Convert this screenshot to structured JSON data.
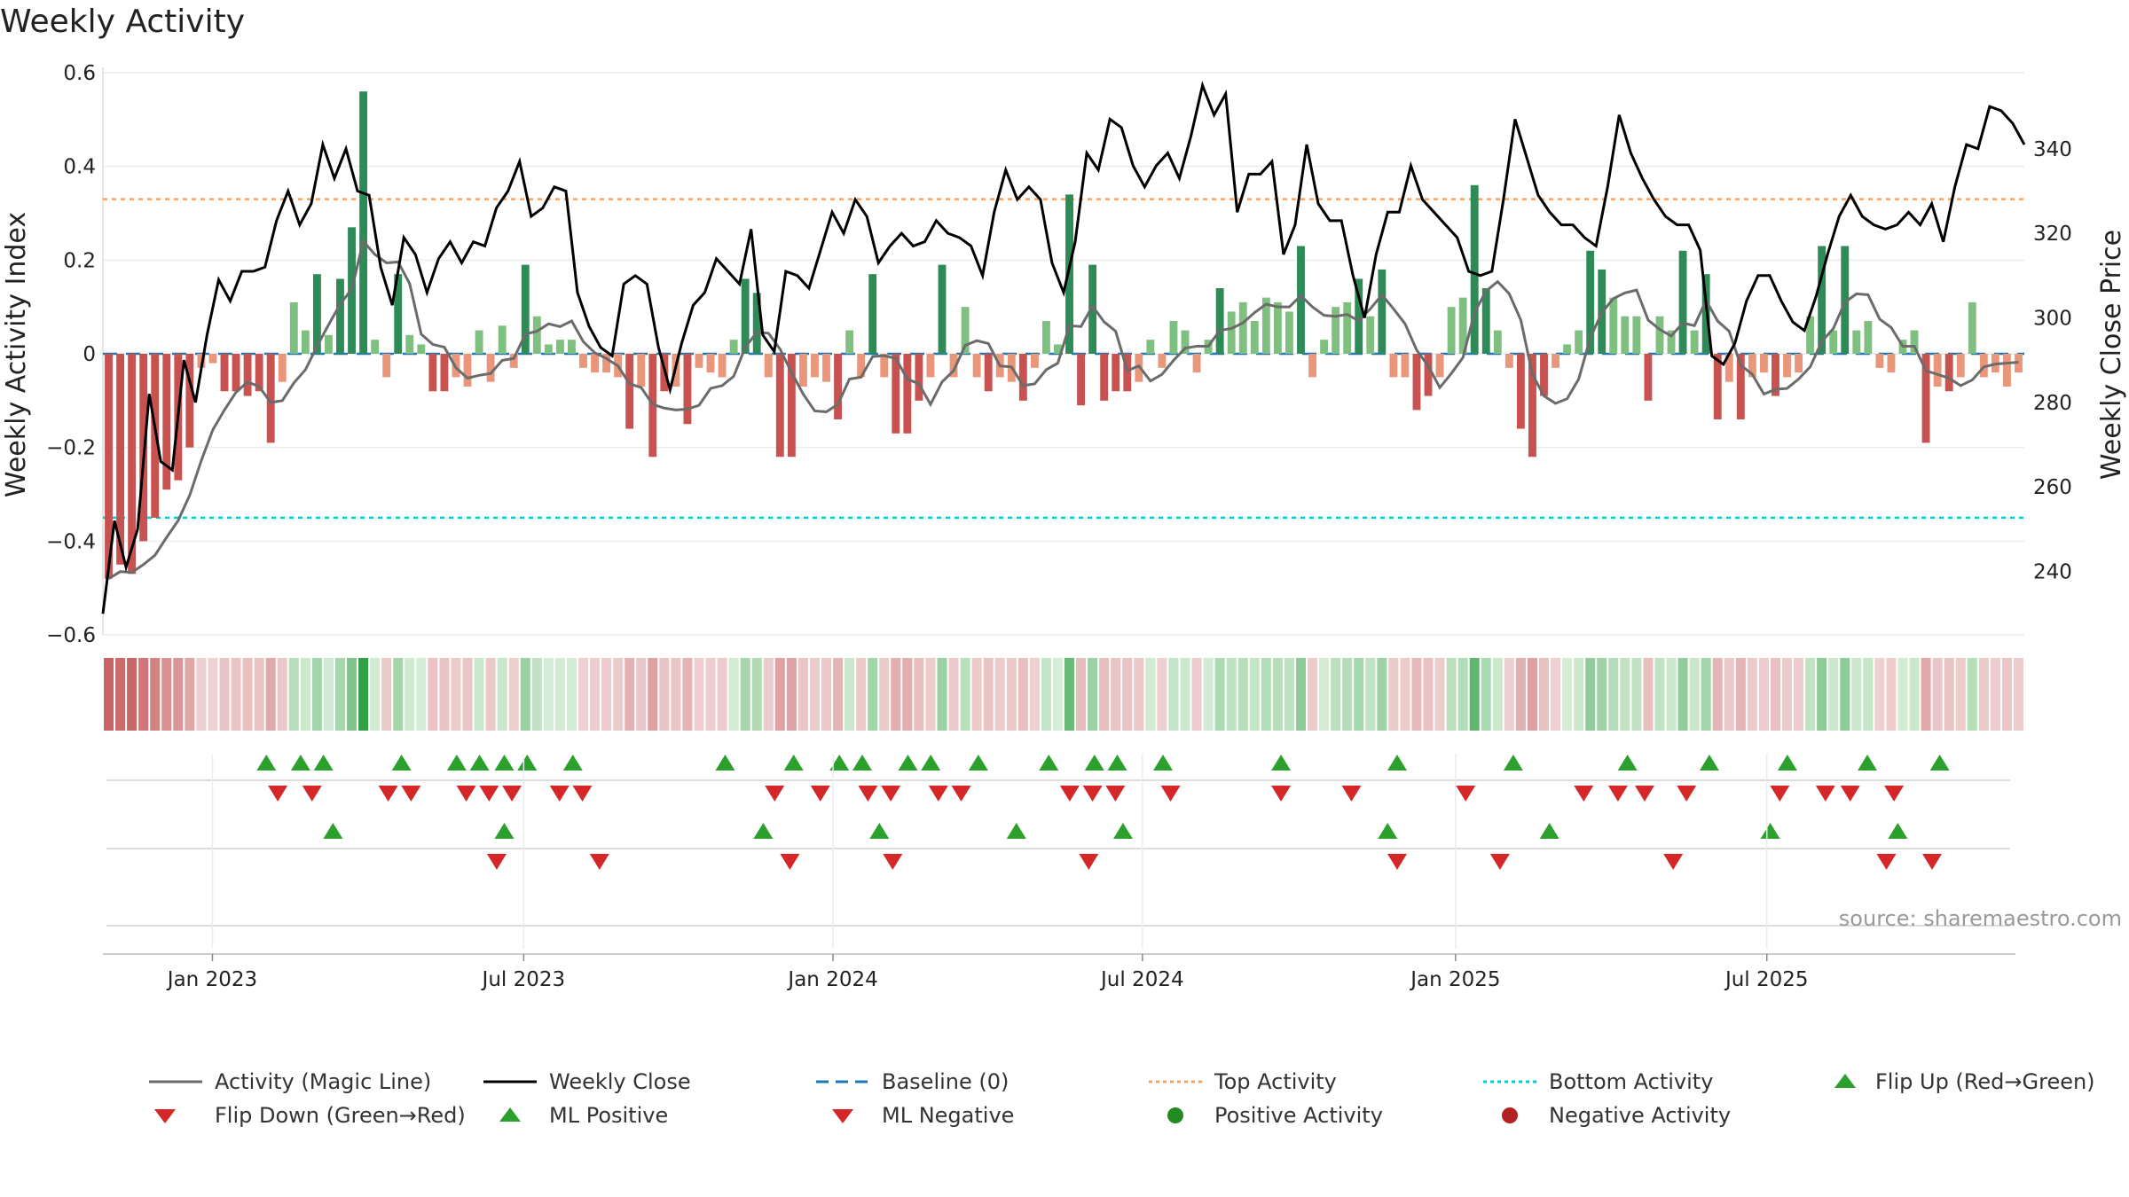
{
  "title": "Weekly Activity",
  "source": "source: sharemaestro.com",
  "colors": {
    "green_strong": "#2e8b57",
    "green_light": "#7fbf7f",
    "red_strong": "#c85250",
    "red_light": "#e9967a",
    "magic_line": "#6b6b6b",
    "close": "#000000",
    "baseline": "#1f77b4",
    "top": "#f4a460",
    "bottom": "#00ced1",
    "marker_up": "#2ca02c",
    "marker_down": "#d62728"
  },
  "chart_data": {
    "type": "bar",
    "title": "Weekly Activity",
    "ylabel": "Weekly Activity Index",
    "y2label": "Weekly Close Price",
    "ylim": [
      -0.6,
      0.6
    ],
    "y2lim": [
      225,
      358
    ],
    "yticks": [
      "0.6",
      "0.4",
      "0.2",
      "0",
      "−0.2",
      "−0.4",
      "−0.6"
    ],
    "y2ticks": [
      "340",
      "320",
      "300",
      "280",
      "260",
      "240"
    ],
    "xtick_labels": [
      "Jan 2023",
      "Jul 2023",
      "Jan 2024",
      "Jul 2024",
      "Jan 2025",
      "Jul 2025"
    ],
    "top_activity": 0.33,
    "bottom_activity": -0.35,
    "baseline": 0,
    "activity": [
      -0.48,
      -0.45,
      -0.47,
      -0.4,
      -0.35,
      -0.29,
      -0.27,
      -0.2,
      -0.03,
      -0.02,
      -0.08,
      -0.08,
      -0.09,
      -0.08,
      -0.19,
      -0.06,
      0.11,
      0.05,
      0.17,
      0.04,
      0.16,
      0.27,
      0.56,
      0.03,
      -0.05,
      0.17,
      0.04,
      0.02,
      -0.08,
      -0.08,
      -0.05,
      -0.07,
      0.05,
      -0.06,
      0.06,
      -0.03,
      0.19,
      0.08,
      0.02,
      0.03,
      0.03,
      -0.03,
      -0.04,
      -0.04,
      -0.05,
      -0.16,
      -0.07,
      -0.22,
      -0.08,
      -0.07,
      -0.15,
      -0.03,
      -0.04,
      -0.05,
      0.03,
      0.16,
      0.13,
      -0.05,
      -0.22,
      -0.22,
      -0.07,
      -0.05,
      -0.06,
      -0.14,
      0.05,
      -0.05,
      0.17,
      -0.05,
      -0.17,
      -0.17,
      -0.1,
      -0.05,
      0.19,
      -0.05,
      0.1,
      -0.05,
      -0.08,
      -0.05,
      -0.06,
      -0.1,
      -0.03,
      0.07,
      0.02,
      0.34,
      -0.11,
      0.19,
      -0.1,
      -0.08,
      -0.08,
      -0.06,
      0.03,
      -0.03,
      0.07,
      0.05,
      -0.04,
      0.03,
      0.14,
      0.09,
      0.11,
      0.07,
      0.12,
      0.11,
      0.09,
      0.23,
      -0.05,
      0.03,
      0.1,
      0.11,
      0.16,
      0.08,
      0.18,
      -0.05,
      -0.05,
      -0.12,
      -0.09,
      -0.05,
      0.1,
      0.12,
      0.36,
      0.14,
      0.05,
      -0.03,
      -0.16,
      -0.22,
      -0.09,
      -0.03,
      0.02,
      0.05,
      0.22,
      0.18,
      0.12,
      0.08,
      0.08,
      -0.1,
      0.08,
      0.05,
      0.22,
      0.05,
      0.17,
      -0.14,
      -0.06,
      -0.14,
      -0.05,
      -0.04,
      -0.09,
      -0.05,
      -0.04,
      0.08,
      0.23,
      0.05,
      0.23,
      0.05,
      0.07,
      -0.03,
      -0.04,
      0.03,
      0.05,
      -0.19,
      -0.07,
      -0.08,
      -0.05,
      0.11,
      -0.05,
      -0.04,
      -0.07,
      -0.04
    ],
    "close": [
      230,
      252,
      241,
      250,
      282,
      266,
      264,
      290,
      280,
      296,
      309,
      304,
      311,
      311,
      312,
      323,
      330,
      322,
      327,
      341,
      333,
      340,
      330,
      329,
      312,
      303,
      319,
      315,
      306,
      314,
      318,
      313,
      318,
      317,
      326,
      330,
      337,
      324,
      326,
      331,
      330,
      306,
      298,
      293,
      291,
      308,
      310,
      308,
      293,
      283,
      294,
      303,
      306,
      314,
      311,
      308,
      321,
      296,
      292,
      311,
      310,
      307,
      316,
      325,
      320,
      328,
      324,
      313,
      317,
      320,
      317,
      318,
      323,
      320,
      319,
      317,
      310,
      325,
      335,
      328,
      331,
      328,
      313,
      306,
      318,
      339,
      335,
      347,
      345,
      336,
      331,
      336,
      339,
      333,
      343,
      355,
      348,
      353,
      325,
      334,
      334,
      337,
      315,
      322,
      341,
      327,
      323,
      323,
      310,
      300,
      315,
      325,
      325,
      336,
      328,
      325,
      322,
      319,
      311,
      310,
      311,
      328,
      347,
      338,
      329,
      325,
      322,
      322,
      319,
      317,
      331,
      348,
      339,
      333,
      328,
      324,
      322,
      322,
      316,
      291,
      289,
      294,
      304,
      310,
      310,
      304,
      299,
      297,
      305,
      315,
      324,
      329,
      324,
      322,
      321,
      322,
      325,
      322,
      327,
      318,
      331,
      341,
      340,
      350,
      349,
      346,
      341
    ]
  },
  "markers": {
    "flip_up_row1": [
      0.084,
      0.102,
      0.114,
      0.155,
      0.184,
      0.196,
      0.209,
      0.221,
      0.245,
      0.325,
      0.361,
      0.385,
      0.397,
      0.421,
      0.433,
      0.458,
      0.495,
      0.519,
      0.531,
      0.555,
      0.617,
      0.678,
      0.739,
      0.799,
      0.842,
      0.883,
      0.925,
      0.963
    ],
    "flip_down_row1": [
      0.09,
      0.108,
      0.148,
      0.16,
      0.189,
      0.201,
      0.213,
      0.238,
      0.25,
      0.351,
      0.375,
      0.4,
      0.412,
      0.437,
      0.449,
      0.506,
      0.518,
      0.53,
      0.559,
      0.617,
      0.654,
      0.714,
      0.776,
      0.794,
      0.808,
      0.83,
      0.879,
      0.903,
      0.916,
      0.939
    ],
    "ml_up_row2": [
      0.119,
      0.209,
      0.345,
      0.406,
      0.478,
      0.534,
      0.673,
      0.758,
      0.874,
      0.941
    ],
    "ml_down_row2": [
      0.205,
      0.259,
      0.359,
      0.413,
      0.516,
      0.678,
      0.732,
      0.823,
      0.935,
      0.959
    ]
  },
  "legend": [
    {
      "key": "activity_line",
      "label": "Activity (Magic Line)"
    },
    {
      "key": "weekly_close",
      "label": "Weekly Close"
    },
    {
      "key": "baseline",
      "label": "Baseline (0)"
    },
    {
      "key": "top_activity",
      "label": "Top Activity"
    },
    {
      "key": "bottom_activity",
      "label": "Bottom Activity"
    },
    {
      "key": "flip_up",
      "label": "Flip Up (Red→Green)"
    },
    {
      "key": "flip_down",
      "label": "Flip Down (Green→Red)"
    },
    {
      "key": "ml_positive",
      "label": "ML Positive"
    },
    {
      "key": "ml_negative",
      "label": "ML Negative"
    },
    {
      "key": "positive_activity",
      "label": "Positive Activity"
    },
    {
      "key": "negative_activity",
      "label": "Negative Activity"
    }
  ]
}
